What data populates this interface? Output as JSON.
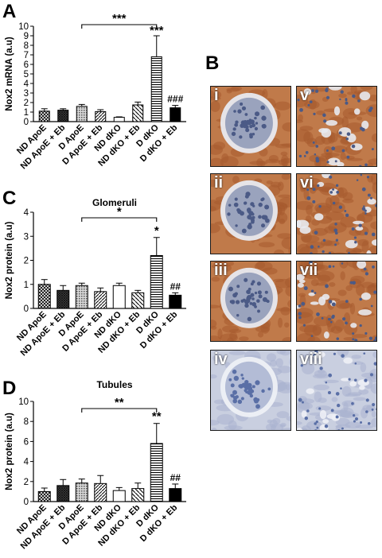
{
  "panels": {
    "A": "A",
    "B": "B",
    "C": "C",
    "D": "D"
  },
  "chart_data": [
    {
      "id": "A",
      "type": "bar",
      "title": "",
      "ylabel": "Nox2 mRNA (a.u)",
      "ylim": [
        0,
        10
      ],
      "yticks": [
        "0",
        "1",
        "2",
        "3",
        "4",
        "5",
        "6",
        "7",
        "8",
        "9",
        "10"
      ],
      "categories": [
        "ND ApoE",
        "ND ApoE + Eb",
        "D ApoE",
        "D ApoE + Eb",
        "ND dKO",
        "ND dKO + Eb",
        "D dKO",
        "D dKO + Eb"
      ],
      "values": [
        1.1,
        1.2,
        1.6,
        1.05,
        0.45,
        1.75,
        6.8,
        1.45
      ],
      "errors": [
        0.25,
        0.15,
        0.2,
        0.2,
        0.05,
        0.3,
        2.2,
        0.25
      ],
      "significance": {
        "bracket": "***",
        "top": "***",
        "last": "###"
      }
    },
    {
      "id": "C",
      "type": "bar",
      "title": "Glomeruli",
      "ylabel": "Nox2 protein (a.u)",
      "ylim": [
        0,
        4
      ],
      "yticks": [
        "0",
        "1",
        "2",
        "3",
        "4"
      ],
      "categories": [
        "ND ApoE",
        "ND ApoE + Eb",
        "D ApoE",
        "D ApoE + Eb",
        "ND dKO",
        "ND dKO + Eb",
        "D dKO",
        "D dKO + Eb"
      ],
      "values": [
        1.0,
        0.75,
        0.95,
        0.7,
        0.95,
        0.65,
        2.2,
        0.55
      ],
      "errors": [
        0.2,
        0.2,
        0.1,
        0.15,
        0.1,
        0.1,
        0.75,
        0.1
      ],
      "significance": {
        "bracket": "*",
        "top": "*",
        "last": "##"
      }
    },
    {
      "id": "D",
      "type": "bar",
      "title": "Tubules",
      "ylabel": "Nox2 protein (a.u)",
      "ylim": [
        0,
        10
      ],
      "yticks": [
        "0",
        "2",
        "4",
        "6",
        "8",
        "10"
      ],
      "categories": [
        "ND ApoE",
        "ND ApoE + Eb",
        "D ApoE",
        "D ApoE + Eb",
        "ND dKO",
        "ND dKO + Eb",
        "D dKO",
        "D dKO + Eb"
      ],
      "values": [
        1.0,
        1.6,
        1.85,
        1.8,
        1.1,
        1.3,
        5.8,
        1.3
      ],
      "errors": [
        0.35,
        0.6,
        0.4,
        0.8,
        0.3,
        0.55,
        2.0,
        0.45
      ],
      "significance": {
        "bracket": "**",
        "top": "**",
        "last": "##"
      }
    }
  ],
  "micrographs": [
    {
      "label": "i",
      "kind": "glomerulus",
      "tone": "brown"
    },
    {
      "label": "v",
      "kind": "tubules",
      "tone": "brown"
    },
    {
      "label": "ii",
      "kind": "glomerulus",
      "tone": "brown"
    },
    {
      "label": "vi",
      "kind": "tubules",
      "tone": "brown"
    },
    {
      "label": "iii",
      "kind": "glomerulus",
      "tone": "brown"
    },
    {
      "label": "vii",
      "kind": "tubules",
      "tone": "brown"
    },
    {
      "label": "iv",
      "kind": "glomerulus",
      "tone": "blue"
    },
    {
      "label": "viii",
      "kind": "tubules",
      "tone": "blue"
    }
  ]
}
